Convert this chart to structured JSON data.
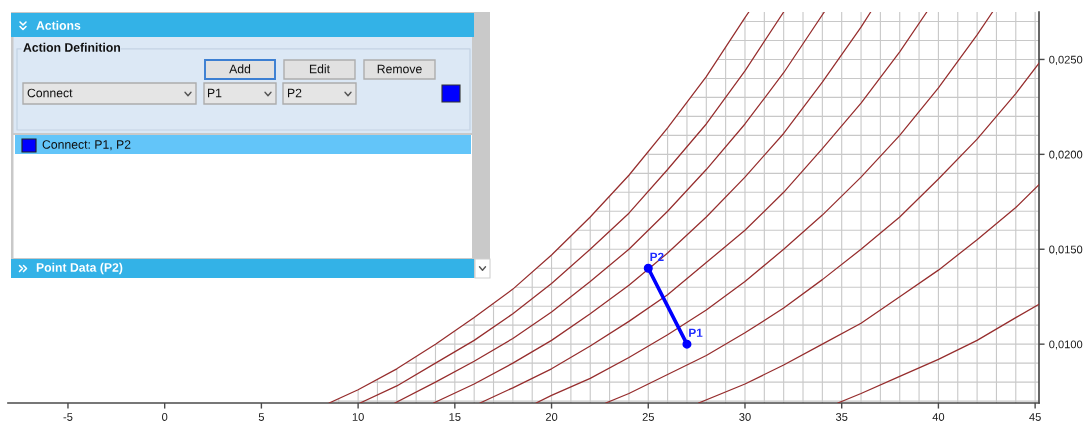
{
  "chart_data": [
    {
      "type": "line",
      "xlim": [
        -8.1,
        45.2
      ],
      "ylim": [
        0.0069,
        0.0275
      ],
      "grid": true,
      "marker": "none",
      "xticks": [
        -5,
        0,
        5,
        {
          "value": 9,
          "label": null
        },
        10,
        {
          "value": 11,
          "label": null
        },
        {
          "value": 12,
          "label": null
        },
        {
          "value": 13,
          "label": null
        },
        {
          "value": 14,
          "label": null
        },
        15,
        {
          "value": 16,
          "label": null
        },
        {
          "value": 17,
          "label": null
        },
        {
          "value": 18,
          "label": null
        },
        {
          "value": 19,
          "label": null
        },
        20,
        {
          "value": 21,
          "label": null
        },
        {
          "value": 22,
          "label": null
        },
        {
          "value": 23,
          "label": null
        },
        {
          "value": 24,
          "label": null
        },
        25,
        {
          "value": 26,
          "label": null
        },
        {
          "value": 27,
          "label": null
        },
        {
          "value": 28,
          "label": null
        },
        {
          "value": 29,
          "label": null
        },
        30,
        {
          "value": 31,
          "label": null
        },
        {
          "value": 32,
          "label": null
        },
        {
          "value": 33,
          "label": null
        },
        {
          "value": 34,
          "label": null
        },
        35,
        {
          "value": 36,
          "label": null
        },
        {
          "value": 37,
          "label": null
        },
        {
          "value": 38,
          "label": null
        },
        {
          "value": 39,
          "label": null
        },
        40,
        {
          "value": 41,
          "label": null
        },
        {
          "value": 42,
          "label": null
        },
        {
          "value": 43,
          "label": null
        },
        {
          "value": 44,
          "label": null
        },
        45
      ],
      "yticks": [
        {
          "value": 0.007,
          "label": null
        },
        {
          "value": 0.008,
          "label": null
        },
        {
          "value": 0.009,
          "label": null
        },
        {
          "value": 0.01,
          "label": "0,0100"
        },
        {
          "value": 0.011,
          "label": null
        },
        {
          "value": 0.012,
          "label": null
        },
        {
          "value": 0.013,
          "label": null
        },
        {
          "value": 0.014,
          "label": null
        },
        {
          "value": 0.015,
          "label": "0,0150"
        },
        {
          "value": 0.016,
          "label": null
        },
        {
          "value": 0.017,
          "label": null
        },
        {
          "value": 0.018,
          "label": null
        },
        {
          "value": 0.019,
          "label": null
        },
        {
          "value": 0.02,
          "label": "0,0200"
        },
        {
          "value": 0.021,
          "label": null
        },
        {
          "value": 0.022,
          "label": null
        },
        {
          "value": 0.023,
          "label": null
        },
        {
          "value": 0.024,
          "label": null
        },
        {
          "value": 0.025,
          "label": "0,0250"
        },
        {
          "value": 0.026,
          "label": null
        },
        {
          "value": 0.027,
          "label": null
        }
      ],
      "annotations": [
        {
          "text": "P1",
          "x": 27,
          "y": 0.01
        },
        {
          "text": "P2",
          "x": 25,
          "y": 0.014
        }
      ],
      "series": [
        {
          "color": "#962d2d",
          "x": [
            8.5,
            10,
            12,
            14,
            16,
            18,
            20,
            22,
            24,
            26,
            28,
            30,
            30.2
          ],
          "values": [
            0.0069,
            0.0076,
            0.0087,
            0.01,
            0.0114,
            0.0129,
            0.0147,
            0.0167,
            0.0189,
            0.0214,
            0.0241,
            0.0272,
            0.0275
          ]
        },
        {
          "color": "#962d2d",
          "x": [
            10.1,
            12,
            14,
            16,
            18,
            20,
            22,
            24,
            26,
            28,
            30,
            32
          ],
          "values": [
            0.0069,
            0.0078,
            0.009,
            0.0102,
            0.0116,
            0.0132,
            0.015,
            0.0169,
            0.0192,
            0.0216,
            0.0244,
            0.0275
          ]
        },
        {
          "color": "#962d2d",
          "x": [
            11.9,
            14,
            16,
            18,
            20,
            22,
            24,
            26,
            28,
            30,
            32,
            34.1
          ],
          "values": [
            0.0069,
            0.008,
            0.0091,
            0.0103,
            0.0117,
            0.0133,
            0.015,
            0.017,
            0.0192,
            0.0216,
            0.0243,
            0.0275
          ]
        },
        {
          "color": "#962d2d",
          "x": [
            13.9,
            16,
            18,
            20,
            22,
            24,
            26,
            28,
            30,
            32,
            34,
            36,
            36.5
          ],
          "values": [
            0.0069,
            0.0079,
            0.009,
            0.0102,
            0.0116,
            0.0131,
            0.0148,
            0.0167,
            0.0188,
            0.0211,
            0.0238,
            0.0267,
            0.0275
          ]
        },
        {
          "color": "#962d2d",
          "x": [
            16.3,
            18,
            20,
            22,
            24,
            26,
            28,
            30,
            32,
            34,
            36,
            38,
            39.4
          ],
          "values": [
            0.0069,
            0.0077,
            0.0087,
            0.0099,
            0.0112,
            0.0126,
            0.0143,
            0.016,
            0.018,
            0.0203,
            0.0227,
            0.0254,
            0.0275
          ]
        },
        {
          "color": "#962d2d",
          "x": [
            19.2,
            20,
            22,
            24,
            26,
            28,
            30,
            32,
            34,
            36,
            38,
            40,
            42,
            42.8
          ],
          "values": [
            0.0069,
            0.0073,
            0.0082,
            0.0093,
            0.0105,
            0.0118,
            0.0133,
            0.015,
            0.0168,
            0.0188,
            0.021,
            0.0235,
            0.0263,
            0.0275
          ]
        },
        {
          "color": "#962d2d",
          "x": [
            22.8,
            24,
            26,
            28,
            30,
            32,
            34,
            36,
            38,
            40,
            42,
            44,
            45.2
          ],
          "values": [
            0.0069,
            0.0074,
            0.0084,
            0.0094,
            0.0106,
            0.0119,
            0.0134,
            0.015,
            0.0167,
            0.0187,
            0.0208,
            0.0232,
            0.0248
          ]
        },
        {
          "color": "#962d2d",
          "x": [
            27.6,
            30,
            32,
            34,
            36,
            38,
            40,
            42,
            44,
            45.2
          ],
          "values": [
            0.0069,
            0.0079,
            0.0089,
            0.01,
            0.0111,
            0.0125,
            0.0139,
            0.0155,
            0.0172,
            0.0184
          ]
        },
        {
          "color": "#962d2d",
          "x": [
            34.8,
            36,
            38,
            40,
            42,
            44,
            45.2
          ],
          "values": [
            0.0069,
            0.0074,
            0.0083,
            0.0092,
            0.0102,
            0.0114,
            0.0121
          ]
        },
        {
          "color": "#0000ff",
          "marker": "circle",
          "x": [
            27,
            25
          ],
          "values": [
            0.01,
            0.014
          ]
        }
      ]
    },
    {
      "type": "other",
      "annotations": [
        "Actions",
        "Action Definition",
        "Add",
        "Edit",
        "Remove",
        "Connect",
        "P1",
        "P2",
        "Connect: P1, P2",
        "Point Data (P2)"
      ]
    }
  ]
}
